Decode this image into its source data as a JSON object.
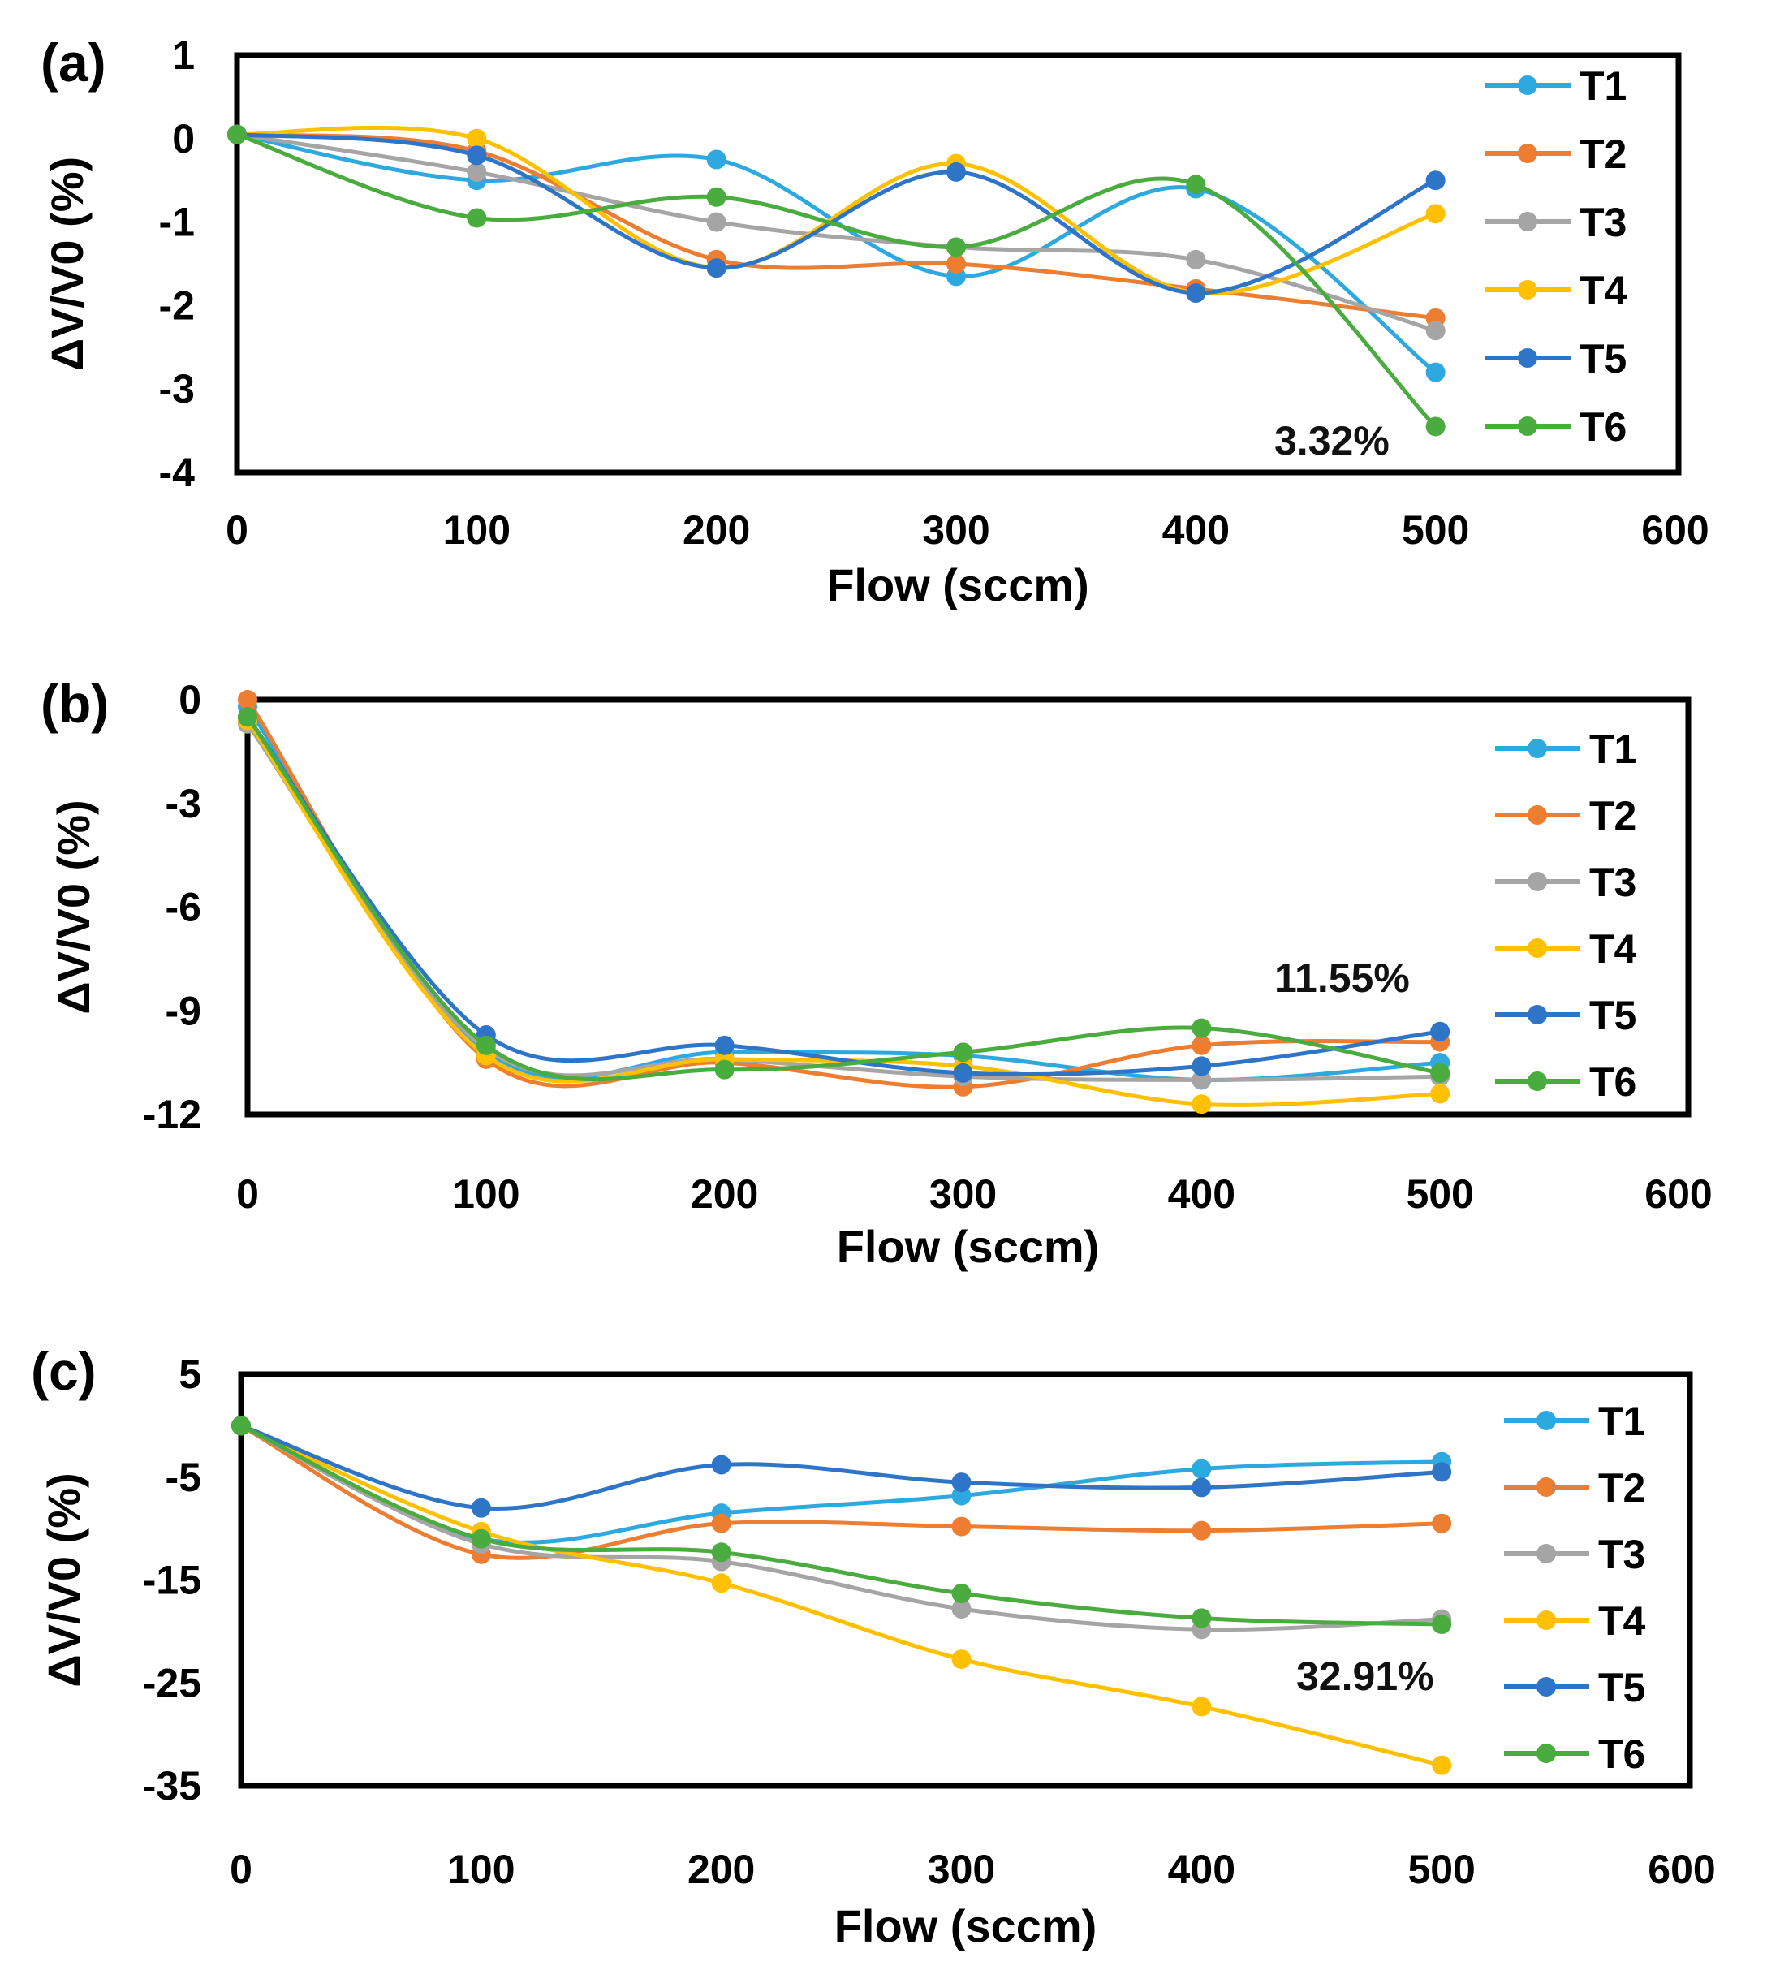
{
  "chart_data": [
    {
      "type": "line",
      "panel_label": "(a)",
      "xlabel": "Flow (sccm)",
      "ylabel": "ΔV/V0 (%)",
      "xlim": [
        0,
        600
      ],
      "ylim": [
        -4,
        1
      ],
      "xticks": [
        "0",
        "100",
        "200",
        "300",
        "400",
        "500",
        "600"
      ],
      "yticks": [
        "1",
        "0",
        "-1",
        "-2",
        "-3",
        "-4"
      ],
      "annotation": "3.32%",
      "x": [
        0,
        100,
        200,
        300,
        400,
        500
      ],
      "series": [
        {
          "name": "T1",
          "color": "#2ea9df",
          "values": [
            0.05,
            -0.5,
            -0.25,
            -1.65,
            -0.6,
            -2.8
          ]
        },
        {
          "name": "T2",
          "color": "#ed7d31",
          "values": [
            0.05,
            -0.15,
            -1.45,
            -1.5,
            -1.8,
            -2.15
          ]
        },
        {
          "name": "T3",
          "color": "#a5a5a5",
          "values": [
            0.05,
            -0.4,
            -1.0,
            -1.3,
            -1.45,
            -2.3
          ]
        },
        {
          "name": "T4",
          "color": "#ffc000",
          "values": [
            0.05,
            0.0,
            -1.55,
            -0.3,
            -1.85,
            -0.9
          ]
        },
        {
          "name": "T5",
          "color": "#2e75c8",
          "values": [
            0.05,
            -0.2,
            -1.55,
            -0.4,
            -1.85,
            -0.5
          ]
        },
        {
          "name": "T6",
          "color": "#4aab3e",
          "values": [
            0.05,
            -0.95,
            -0.7,
            -1.3,
            -0.55,
            -3.45
          ]
        }
      ]
    },
    {
      "type": "line",
      "panel_label": "(b)",
      "xlabel": "Flow (sccm)",
      "ylabel": "ΔV/V0 (%)",
      "xlim": [
        0,
        600
      ],
      "ylim": [
        -12,
        0
      ],
      "xticks": [
        "0",
        "100",
        "200",
        "300",
        "400",
        "500",
        "600"
      ],
      "yticks": [
        "0",
        "-3",
        "-6",
        "-9",
        "-12"
      ],
      "annotation": "11.55%",
      "x": [
        0,
        100,
        200,
        300,
        400,
        500
      ],
      "series": [
        {
          "name": "T1",
          "color": "#2ea9df",
          "values": [
            -0.2,
            -10.2,
            -10.2,
            -10.3,
            -11.0,
            -10.5
          ]
        },
        {
          "name": "T2",
          "color": "#ed7d31",
          "values": [
            0.0,
            -10.4,
            -10.5,
            -11.2,
            -10.0,
            -9.9
          ]
        },
        {
          "name": "T3",
          "color": "#a5a5a5",
          "values": [
            -0.7,
            -10.1,
            -10.4,
            -10.9,
            -11.0,
            -10.9
          ]
        },
        {
          "name": "T4",
          "color": "#ffc000",
          "values": [
            -0.6,
            -10.3,
            -10.4,
            -10.6,
            -11.7,
            -11.4
          ]
        },
        {
          "name": "T5",
          "color": "#2e75c8",
          "values": [
            -0.5,
            -9.7,
            -10.0,
            -10.8,
            -10.6,
            -9.6
          ]
        },
        {
          "name": "T6",
          "color": "#4aab3e",
          "values": [
            -0.5,
            -10.0,
            -10.7,
            -10.2,
            -9.5,
            -10.8
          ]
        }
      ]
    },
    {
      "type": "line",
      "panel_label": "(c)",
      "xlabel": "Flow (sccm)",
      "ylabel": "ΔV/V0 (%)",
      "xlim": [
        0,
        600
      ],
      "ylim": [
        -35,
        5
      ],
      "xticks": [
        "0",
        "100",
        "200",
        "300",
        "400",
        "500",
        "600"
      ],
      "yticks": [
        "5",
        "-5",
        "-15",
        "-25",
        "-35"
      ],
      "annotation": "32.91%",
      "x": [
        0,
        100,
        200,
        300,
        400,
        500
      ],
      "series": [
        {
          "name": "T1",
          "color": "#2ea9df",
          "values": [
            0.0,
            -11.0,
            -8.5,
            -6.8,
            -4.2,
            -3.5
          ]
        },
        {
          "name": "T2",
          "color": "#ed7d31",
          "values": [
            0.0,
            -12.5,
            -9.5,
            -9.8,
            -10.2,
            -9.5
          ]
        },
        {
          "name": "T3",
          "color": "#a5a5a5",
          "values": [
            0.0,
            -11.5,
            -13.2,
            -17.8,
            -19.8,
            -18.8
          ]
        },
        {
          "name": "T4",
          "color": "#ffc000",
          "values": [
            0.0,
            -10.3,
            -15.3,
            -22.7,
            -27.3,
            -33.0
          ]
        },
        {
          "name": "T5",
          "color": "#2e75c8",
          "values": [
            0.0,
            -8.0,
            -3.8,
            -5.5,
            -6.0,
            -4.5
          ]
        },
        {
          "name": "T6",
          "color": "#4aab3e",
          "values": [
            0.0,
            -11.0,
            -12.3,
            -16.3,
            -18.7,
            -19.3
          ]
        }
      ]
    }
  ]
}
